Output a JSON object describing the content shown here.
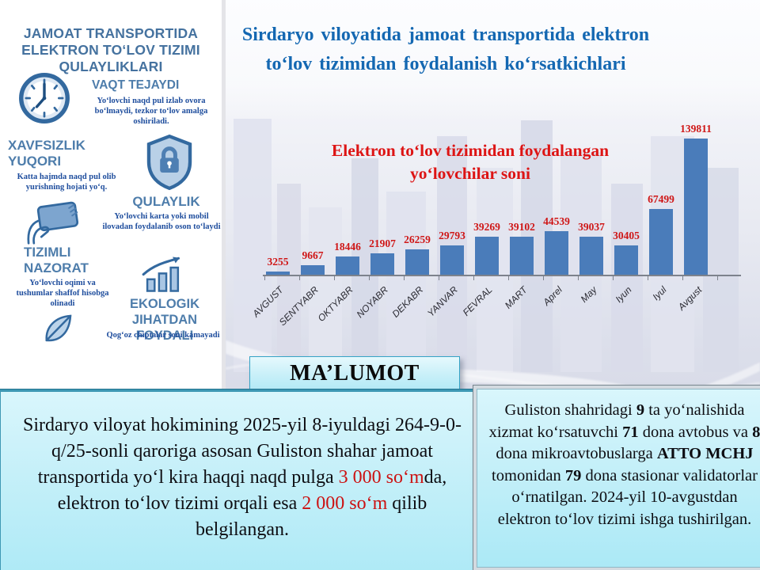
{
  "sidebar": {
    "title": "JAMOAT TRANSPORTIDA ELEKTRON TO‘LOV TIZIMI QULAYLIKLARI",
    "features": [
      {
        "heading": "VAQT TEJAYDI",
        "desc": "Yo‘lovchi naqd pul izlab ovora bo‘lmaydi, tezkor to‘lov amalga oshiriladi.",
        "icon": "clock-icon"
      },
      {
        "heading": "XAVFSIZLIK YUQORI",
        "desc": "Katta hajmda naqd pul olib yurishning hojati yo‘q.",
        "icon": "shield-lock-icon"
      },
      {
        "heading": "QULAYLIK",
        "desc": "Yo‘lovchi karta yoki mobil ilovadan foydalanib oson to‘laydi",
        "icon": "card-payment-icon"
      },
      {
        "heading": "TIZIMLI NAZORAT",
        "desc": "Yo‘lovchi oqimi va tushumlar shaffof hisobga olinadi",
        "icon": "growth-chart-icon"
      },
      {
        "heading": "EKOLOGIK JIHATDAN FOYDALI",
        "desc": "Qog‘oz chiptalar soni kamayadi",
        "icon": "leaf-icon"
      }
    ]
  },
  "main": {
    "title": "Sirdaryo viloyatida jamoat transportida elektron to‘lov tizimidan foydalanish ko‘rsatkichlari",
    "info_heading": "MA’LUMOT"
  },
  "chart_data": {
    "type": "bar",
    "title": "Elektron to‘lov tizimidan foydalangan yo‘lovchilar soni",
    "categories": [
      "AVGUST",
      "SENTYABR",
      "OKTYABR",
      "NOYABR",
      "DEKABR",
      "YANVAR",
      "FEVRAL",
      "MART",
      "Aprel",
      "May",
      "Iyun",
      "Iyul",
      "Avgust"
    ],
    "values": [
      3255,
      9667,
      18446,
      21907,
      26259,
      29793,
      39269,
      39102,
      44539,
      39037,
      30405,
      67499,
      139811
    ],
    "xlabel": "",
    "ylabel": "",
    "ylim": [
      0,
      139811
    ],
    "grid": false,
    "legend": "none",
    "bar_color": "#4a7cba",
    "value_label_color": "#cf1717",
    "title_color": "#dd1414"
  },
  "info_boxes": {
    "left": {
      "segments": [
        {
          "text": "Sirdaryo viloyat hokimining 2025-yil 8-iyuldagi 264-9-0-q/25-sonli qaroriga asosan Guliston shahar jamoat transportida yo‘l kira haqqi naqd pulga "
        },
        {
          "text": "3 000 so‘m",
          "style": "red"
        },
        {
          "text": "da, elektron to‘lov tizimi orqali esa "
        },
        {
          "text": "2 000 so‘m",
          "style": "red"
        },
        {
          "text": " qilib belgilangan."
        }
      ]
    },
    "right": {
      "segments": [
        {
          "text": "Guliston shahridagi "
        },
        {
          "text": "9",
          "style": "bold"
        },
        {
          "text": " ta yo‘nalishida xizmat ko‘rsatuvchi "
        },
        {
          "text": "71",
          "style": "bold"
        },
        {
          "text": " dona avtobus va "
        },
        {
          "text": "8",
          "style": "bold"
        },
        {
          "text": " dona mikroavtobuslarga "
        },
        {
          "text": "ATTO MCHJ",
          "style": "bold"
        },
        {
          "text": " tomonidan "
        },
        {
          "text": "79",
          "style": "bold"
        },
        {
          "text": " dona stasionar validatorlar o‘rnatilgan. 2024-yil 10-avgustdan elektron to‘lov tizimi ishga tushirilgan."
        }
      ]
    }
  },
  "colors": {
    "accent_blue_title": "#1468b2",
    "accent_red": "#dd1414",
    "bar_blue": "#4a7cba",
    "sidebar_heading": "#4e7dab",
    "sidebar_desc": "#1e4d9d",
    "box_border_teal": "#3e98b4",
    "box_fill_cyan": "#bdecf7"
  }
}
